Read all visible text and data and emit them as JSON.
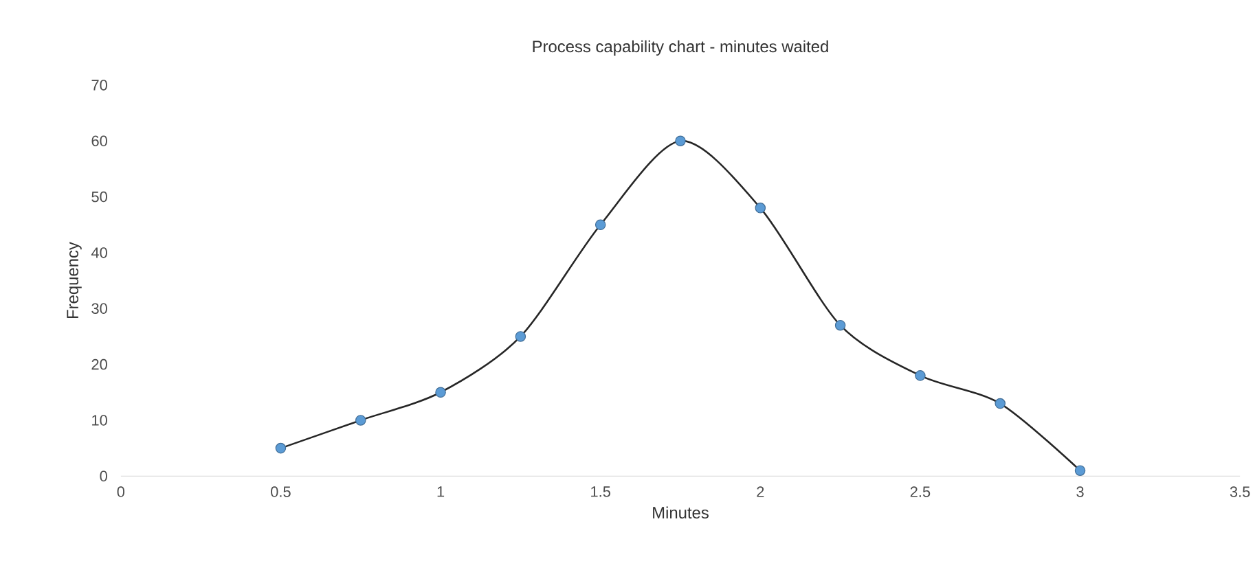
{
  "chart_data": {
    "type": "line",
    "title": "Process capability chart - minutes waited",
    "xlabel": "Minutes",
    "ylabel": "Frequency",
    "x": [
      0.5,
      0.75,
      1,
      1.25,
      1.5,
      1.75,
      2,
      2.25,
      2.5,
      2.75,
      3
    ],
    "values": [
      5,
      10,
      15,
      25,
      45,
      60,
      48,
      27,
      18,
      13,
      1
    ],
    "color": "#5b9bd5",
    "marker": "circle",
    "line_style": "solid",
    "grid": false,
    "xlim": [
      0,
      3.5
    ],
    "ylim": [
      0,
      70
    ],
    "xticks": [
      0,
      0.5,
      1,
      1.5,
      2,
      2.5,
      3,
      3.5
    ],
    "yticks": [
      0,
      10,
      20,
      30,
      40,
      50,
      60,
      70
    ]
  }
}
